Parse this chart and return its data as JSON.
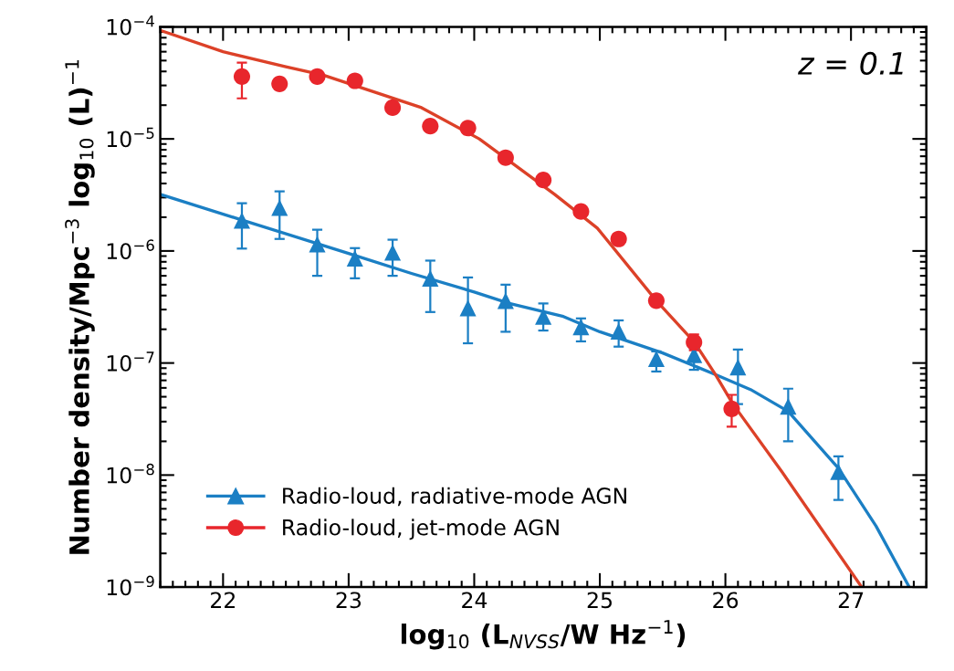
{
  "chart_data": {
    "type": "scatter",
    "log": "y",
    "grid": false,
    "legend": "bottom left",
    "xlabel": "log$_{10}$ (L$_{NVSS}$/W Hz$^{−1}$)",
    "ylabel": "Number density/Mpc$^{−3}$ log$_{10}$ (L)$^{−1}$",
    "xlim": [
      21.5,
      27.6
    ],
    "xticks": [
      22,
      23,
      24,
      25,
      26,
      27
    ],
    "ylim": [
      1e-09,
      0.0001
    ],
    "yticks": [
      {
        "value": 1e-09,
        "label": "10$^{−9}$"
      },
      {
        "value": 1e-08,
        "label": "10$^{−8}$"
      },
      {
        "value": 1e-07,
        "label": "10$^{−7}$"
      },
      {
        "value": 1e-06,
        "label": "10$^{−6}$"
      },
      {
        "value": 1e-05,
        "label": "10$^{−5}$"
      },
      {
        "value": 0.0001,
        "label": "10$^{−4}$"
      }
    ],
    "annotations": [
      "z = 0.1"
    ],
    "series": [
      {
        "type": "line",
        "color": "#1b7fc4",
        "x": [
          21.5,
          22.17,
          23.0,
          23.5,
          24.0,
          24.28,
          24.71,
          25.0,
          25.5,
          25.92,
          26.2,
          26.5,
          26.9,
          27.2,
          27.46
        ],
        "values": [
          3.2e-06,
          1.86e-06,
          9.5e-07,
          6.3e-07,
          4.3e-07,
          3.4e-07,
          2.6e-07,
          1.9e-07,
          1.23e-07,
          7.9e-08,
          5.8e-08,
          3.7e-08,
          1.15e-08,
          3.5e-09,
          1.02e-09
        ]
      },
      {
        "type": "line",
        "color": "#dc4128",
        "x": [
          21.5,
          22.0,
          22.5,
          22.8,
          23.58,
          24.04,
          24.64,
          24.98,
          25.45,
          25.75,
          25.92,
          26.06,
          26.45,
          27.08
        ],
        "values": [
          9.3e-05,
          6e-05,
          4.4e-05,
          3.7e-05,
          1.9e-05,
          1e-05,
          3.2e-06,
          1.6e-06,
          3.6e-07,
          1.55e-07,
          7.9e-08,
          4.3e-08,
          1.07e-08,
          1.02e-09
        ]
      },
      {
        "name": "Radio-loud, radiative-mode AGN",
        "marker": "triangle",
        "color": "#1b7fc4",
        "x": [
          22.15,
          22.45,
          22.75,
          23.05,
          23.35,
          23.65,
          23.95,
          24.25,
          24.55,
          24.85,
          25.15,
          25.45,
          25.75,
          26.1,
          26.5,
          26.9
        ],
        "values": [
          1.87e-06,
          2.43e-06,
          1.15e-06,
          8.6e-07,
          9.7e-07,
          5.7e-07,
          3.1e-07,
          3.6e-07,
          2.6e-07,
          2.1e-07,
          1.92e-07,
          1.09e-07,
          1.18e-07,
          9.2e-08,
          4.1e-08,
          1.07e-08
        ],
        "errors": [
          [
            1.05e-06,
            2.67e-06
          ],
          [
            1.28e-06,
            3.4e-06
          ],
          [
            6e-07,
            1.55e-06
          ],
          [
            5.7e-07,
            1.06e-06
          ],
          [
            6e-07,
            1.26e-06
          ],
          [
            2.85e-07,
            8.2e-07
          ],
          [
            1.5e-07,
            5.8e-07
          ],
          [
            1.9e-07,
            5e-07
          ],
          [
            1.95e-07,
            3.4e-07
          ],
          [
            1.56e-07,
            2.5e-07
          ],
          [
            1.4e-07,
            2.4e-07
          ],
          [
            8.4e-08,
            1.27e-07
          ],
          [
            8.7e-08,
            1.35e-07
          ],
          [
            4.3e-08,
            1.32e-07
          ],
          [
            2e-08,
            5.9e-08
          ],
          [
            6e-09,
            1.47e-08
          ]
        ]
      },
      {
        "name": "Radio-loud, jet-mode AGN",
        "marker": "circle",
        "color": "#e8262c",
        "x": [
          22.15,
          22.45,
          22.75,
          23.05,
          23.35,
          23.65,
          23.95,
          24.25,
          24.55,
          24.85,
          25.15,
          25.45,
          25.75,
          26.05
        ],
        "values": [
          3.6e-05,
          3.1e-05,
          3.6e-05,
          3.3e-05,
          1.9e-05,
          1.3e-05,
          1.25e-05,
          6.8e-06,
          4.3e-06,
          2.25e-06,
          1.28e-06,
          3.6e-07,
          1.53e-07,
          3.9e-08
        ],
        "errors": [
          [
            2.3e-05,
            4.8e-05
          ],
          null,
          null,
          null,
          null,
          null,
          null,
          null,
          null,
          null,
          null,
          null,
          [
            1.3e-07,
            1.8e-07
          ],
          [
            2.7e-08,
            5.2e-08
          ]
        ]
      }
    ]
  }
}
